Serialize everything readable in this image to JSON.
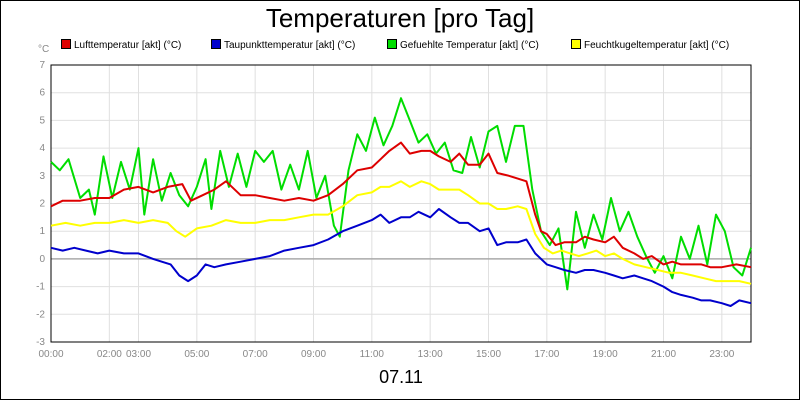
{
  "chart_data": {
    "type": "line",
    "title": "Temperaturen [pro Tag]",
    "ylabel": "°C",
    "date_label": "07.11",
    "ylim": [
      -3,
      7
    ],
    "yticks": [
      -3,
      -2,
      -1,
      0,
      1,
      2,
      3,
      4,
      5,
      6,
      7
    ],
    "xlim": [
      0,
      24
    ],
    "xticks": [
      {
        "x": 0,
        "label": "00:00"
      },
      {
        "x": 2,
        "label": "02:00"
      },
      {
        "x": 3,
        "label": "03:00"
      },
      {
        "x": 5,
        "label": "05:00"
      },
      {
        "x": 7,
        "label": "07:00"
      },
      {
        "x": 9,
        "label": "09:00"
      },
      {
        "x": 11,
        "label": "11:00"
      },
      {
        "x": 13,
        "label": "13:00"
      },
      {
        "x": 15,
        "label": "15:00"
      },
      {
        "x": 17,
        "label": "17:00"
      },
      {
        "x": 19,
        "label": "19:00"
      },
      {
        "x": 21,
        "label": "21:00"
      },
      {
        "x": 23,
        "label": "23:00"
      }
    ],
    "grid": true,
    "legend_position": "top",
    "zero_line": true,
    "series": [
      {
        "name": "Lufttemperatur [akt] (°C)",
        "color": "#dd0000",
        "points": [
          [
            0,
            1.9
          ],
          [
            0.4,
            2.1
          ],
          [
            1,
            2.1
          ],
          [
            1.5,
            2.2
          ],
          [
            2,
            2.2
          ],
          [
            2.5,
            2.5
          ],
          [
            3,
            2.6
          ],
          [
            3.5,
            2.4
          ],
          [
            4,
            2.6
          ],
          [
            4.5,
            2.7
          ],
          [
            4.8,
            2.1
          ],
          [
            5.2,
            2.3
          ],
          [
            5.6,
            2.5
          ],
          [
            6,
            2.8
          ],
          [
            6.5,
            2.3
          ],
          [
            7,
            2.3
          ],
          [
            7.5,
            2.2
          ],
          [
            8,
            2.1
          ],
          [
            8.5,
            2.2
          ],
          [
            9,
            2.1
          ],
          [
            9.5,
            2.3
          ],
          [
            10,
            2.7
          ],
          [
            10.5,
            3.2
          ],
          [
            11,
            3.3
          ],
          [
            11.3,
            3.6
          ],
          [
            11.6,
            3.9
          ],
          [
            12,
            4.2
          ],
          [
            12.3,
            3.8
          ],
          [
            12.7,
            3.9
          ],
          [
            13,
            3.9
          ],
          [
            13.3,
            3.7
          ],
          [
            13.7,
            3.5
          ],
          [
            14,
            3.8
          ],
          [
            14.3,
            3.4
          ],
          [
            14.7,
            3.4
          ],
          [
            15,
            3.8
          ],
          [
            15.3,
            3.1
          ],
          [
            15.7,
            3.0
          ],
          [
            16,
            2.9
          ],
          [
            16.3,
            2.8
          ],
          [
            16.6,
            1.6
          ],
          [
            16.8,
            1.0
          ],
          [
            17,
            0.9
          ],
          [
            17.3,
            0.5
          ],
          [
            17.6,
            0.6
          ],
          [
            18,
            0.6
          ],
          [
            18.3,
            0.8
          ],
          [
            18.6,
            0.7
          ],
          [
            19,
            0.6
          ],
          [
            19.3,
            0.8
          ],
          [
            19.6,
            0.4
          ],
          [
            20,
            0.2
          ],
          [
            20.3,
            0.0
          ],
          [
            20.6,
            0.1
          ],
          [
            21,
            -0.2
          ],
          [
            21.3,
            -0.1
          ],
          [
            21.6,
            -0.2
          ],
          [
            22,
            -0.2
          ],
          [
            22.3,
            -0.2
          ],
          [
            22.6,
            -0.3
          ],
          [
            23,
            -0.3
          ],
          [
            23.5,
            -0.2
          ],
          [
            24,
            -0.3
          ]
        ]
      },
      {
        "name": "Taupunkttemperatur [akt] (°C)",
        "color": "#0000cc",
        "points": [
          [
            0,
            0.4
          ],
          [
            0.4,
            0.3
          ],
          [
            0.8,
            0.4
          ],
          [
            1.2,
            0.3
          ],
          [
            1.6,
            0.2
          ],
          [
            2,
            0.3
          ],
          [
            2.5,
            0.2
          ],
          [
            3,
            0.2
          ],
          [
            3.5,
            0.0
          ],
          [
            3.8,
            -0.1
          ],
          [
            4.1,
            -0.2
          ],
          [
            4.4,
            -0.6
          ],
          [
            4.7,
            -0.8
          ],
          [
            5,
            -0.6
          ],
          [
            5.3,
            -0.2
          ],
          [
            5.6,
            -0.3
          ],
          [
            6,
            -0.2
          ],
          [
            6.5,
            -0.1
          ],
          [
            7,
            0.0
          ],
          [
            7.5,
            0.1
          ],
          [
            8,
            0.3
          ],
          [
            8.5,
            0.4
          ],
          [
            9,
            0.5
          ],
          [
            9.5,
            0.7
          ],
          [
            10,
            1.0
          ],
          [
            10.5,
            1.2
          ],
          [
            11,
            1.4
          ],
          [
            11.3,
            1.6
          ],
          [
            11.6,
            1.3
          ],
          [
            12,
            1.5
          ],
          [
            12.3,
            1.5
          ],
          [
            12.6,
            1.7
          ],
          [
            13,
            1.5
          ],
          [
            13.3,
            1.8
          ],
          [
            13.7,
            1.5
          ],
          [
            14,
            1.3
          ],
          [
            14.3,
            1.3
          ],
          [
            14.7,
            1.0
          ],
          [
            15,
            1.1
          ],
          [
            15.3,
            0.5
          ],
          [
            15.6,
            0.6
          ],
          [
            16,
            0.6
          ],
          [
            16.3,
            0.7
          ],
          [
            16.6,
            0.2
          ],
          [
            17,
            -0.2
          ],
          [
            17.3,
            -0.3
          ],
          [
            17.6,
            -0.4
          ],
          [
            18,
            -0.5
          ],
          [
            18.3,
            -0.4
          ],
          [
            18.6,
            -0.4
          ],
          [
            19,
            -0.5
          ],
          [
            19.3,
            -0.6
          ],
          [
            19.6,
            -0.7
          ],
          [
            20,
            -0.6
          ],
          [
            20.3,
            -0.7
          ],
          [
            20.6,
            -0.8
          ],
          [
            21,
            -1.0
          ],
          [
            21.3,
            -1.2
          ],
          [
            21.6,
            -1.3
          ],
          [
            22,
            -1.4
          ],
          [
            22.3,
            -1.5
          ],
          [
            22.6,
            -1.5
          ],
          [
            23,
            -1.6
          ],
          [
            23.3,
            -1.7
          ],
          [
            23.6,
            -1.5
          ],
          [
            24,
            -1.6
          ]
        ]
      },
      {
        "name": "Gefuehlte Temperatur [akt] (°C)",
        "color": "#00dd00",
        "points": [
          [
            0,
            3.5
          ],
          [
            0.3,
            3.2
          ],
          [
            0.6,
            3.6
          ],
          [
            1,
            2.2
          ],
          [
            1.3,
            2.5
          ],
          [
            1.5,
            1.6
          ],
          [
            1.8,
            3.7
          ],
          [
            2.1,
            2.2
          ],
          [
            2.4,
            3.5
          ],
          [
            2.7,
            2.5
          ],
          [
            3,
            4.0
          ],
          [
            3.2,
            1.6
          ],
          [
            3.5,
            3.6
          ],
          [
            3.8,
            2.1
          ],
          [
            4.1,
            3.1
          ],
          [
            4.4,
            2.3
          ],
          [
            4.7,
            1.9
          ],
          [
            5,
            2.6
          ],
          [
            5.3,
            3.6
          ],
          [
            5.5,
            1.8
          ],
          [
            5.8,
            3.9
          ],
          [
            6.1,
            2.6
          ],
          [
            6.4,
            3.8
          ],
          [
            6.7,
            2.6
          ],
          [
            7,
            3.9
          ],
          [
            7.3,
            3.5
          ],
          [
            7.6,
            3.9
          ],
          [
            7.9,
            2.5
          ],
          [
            8.2,
            3.4
          ],
          [
            8.5,
            2.5
          ],
          [
            8.8,
            3.9
          ],
          [
            9.1,
            2.2
          ],
          [
            9.4,
            3.0
          ],
          [
            9.7,
            1.2
          ],
          [
            9.9,
            0.8
          ],
          [
            10.2,
            3.2
          ],
          [
            10.5,
            4.5
          ],
          [
            10.8,
            3.9
          ],
          [
            11.1,
            5.1
          ],
          [
            11.4,
            4.1
          ],
          [
            11.7,
            4.8
          ],
          [
            12,
            5.8
          ],
          [
            12.3,
            5.0
          ],
          [
            12.6,
            4.2
          ],
          [
            12.9,
            4.5
          ],
          [
            13.2,
            3.8
          ],
          [
            13.5,
            4.2
          ],
          [
            13.8,
            3.2
          ],
          [
            14.1,
            3.1
          ],
          [
            14.4,
            4.4
          ],
          [
            14.7,
            3.3
          ],
          [
            15,
            4.6
          ],
          [
            15.3,
            4.8
          ],
          [
            15.6,
            3.5
          ],
          [
            15.9,
            4.8
          ],
          [
            16.2,
            4.8
          ],
          [
            16.5,
            2.5
          ],
          [
            16.8,
            1.0
          ],
          [
            17.1,
            0.5
          ],
          [
            17.4,
            1.1
          ],
          [
            17.7,
            -1.1
          ],
          [
            18,
            1.7
          ],
          [
            18.3,
            0.4
          ],
          [
            18.6,
            1.6
          ],
          [
            18.9,
            0.7
          ],
          [
            19.2,
            2.2
          ],
          [
            19.5,
            1.0
          ],
          [
            19.8,
            1.7
          ],
          [
            20.1,
            0.8
          ],
          [
            20.4,
            0.1
          ],
          [
            20.7,
            -0.5
          ],
          [
            21,
            0.1
          ],
          [
            21.3,
            -0.7
          ],
          [
            21.6,
            0.8
          ],
          [
            21.9,
            0.0
          ],
          [
            22.2,
            1.2
          ],
          [
            22.5,
            -0.2
          ],
          [
            22.8,
            1.6
          ],
          [
            23.1,
            1.0
          ],
          [
            23.4,
            -0.3
          ],
          [
            23.7,
            -0.6
          ],
          [
            24,
            0.4
          ]
        ]
      },
      {
        "name": "Feuchtkugeltemperatur [akt] (°C)",
        "color": "#ffff00",
        "points": [
          [
            0,
            1.2
          ],
          [
            0.5,
            1.3
          ],
          [
            1,
            1.2
          ],
          [
            1.5,
            1.3
          ],
          [
            2,
            1.3
          ],
          [
            2.5,
            1.4
          ],
          [
            3,
            1.3
          ],
          [
            3.5,
            1.4
          ],
          [
            4,
            1.3
          ],
          [
            4.3,
            1.0
          ],
          [
            4.6,
            0.8
          ],
          [
            5,
            1.1
          ],
          [
            5.5,
            1.2
          ],
          [
            6,
            1.4
          ],
          [
            6.5,
            1.3
          ],
          [
            7,
            1.3
          ],
          [
            7.5,
            1.4
          ],
          [
            8,
            1.4
          ],
          [
            8.5,
            1.5
          ],
          [
            9,
            1.6
          ],
          [
            9.5,
            1.6
          ],
          [
            10,
            1.9
          ],
          [
            10.5,
            2.3
          ],
          [
            11,
            2.4
          ],
          [
            11.3,
            2.6
          ],
          [
            11.6,
            2.6
          ],
          [
            12,
            2.8
          ],
          [
            12.3,
            2.6
          ],
          [
            12.7,
            2.8
          ],
          [
            13,
            2.7
          ],
          [
            13.3,
            2.5
          ],
          [
            13.7,
            2.5
          ],
          [
            14,
            2.5
          ],
          [
            14.3,
            2.3
          ],
          [
            14.7,
            2.0
          ],
          [
            15,
            2.0
          ],
          [
            15.3,
            1.8
          ],
          [
            15.6,
            1.8
          ],
          [
            16,
            1.9
          ],
          [
            16.3,
            1.8
          ],
          [
            16.6,
            0.9
          ],
          [
            16.9,
            0.4
          ],
          [
            17.2,
            0.2
          ],
          [
            17.5,
            0.3
          ],
          [
            17.8,
            0.2
          ],
          [
            18.1,
            0.1
          ],
          [
            18.4,
            0.2
          ],
          [
            18.7,
            0.3
          ],
          [
            19,
            0.1
          ],
          [
            19.3,
            0.2
          ],
          [
            19.6,
            0.0
          ],
          [
            20,
            -0.2
          ],
          [
            20.4,
            -0.3
          ],
          [
            20.8,
            -0.4
          ],
          [
            21.2,
            -0.5
          ],
          [
            21.6,
            -0.5
          ],
          [
            22,
            -0.6
          ],
          [
            22.4,
            -0.7
          ],
          [
            22.8,
            -0.8
          ],
          [
            23.2,
            -0.8
          ],
          [
            23.6,
            -0.8
          ],
          [
            24,
            -0.9
          ]
        ]
      }
    ]
  }
}
